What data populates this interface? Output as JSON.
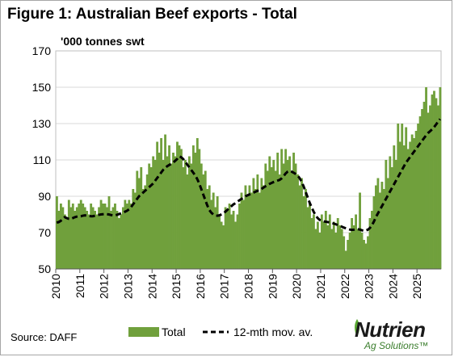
{
  "title": "Figure 1: Australian Beef exports - Total",
  "unit_label": "'000 tonnes swt",
  "source": "Source: DAFF",
  "logo": {
    "name": "Nutrien",
    "sub": "Ag Solutions™"
  },
  "colors": {
    "bars": "#70a03c",
    "line": "#000000",
    "grid": "#d9d9d9"
  },
  "chart_data": {
    "type": "bar",
    "ylim": [
      50,
      170
    ],
    "yticks": [
      50,
      70,
      90,
      110,
      130,
      150,
      170
    ],
    "x_tick_labels": [
      "2010",
      "2011",
      "2012",
      "2013",
      "2014",
      "2015",
      "2016",
      "2017",
      "2018",
      "2019",
      "2020",
      "2021",
      "2022",
      "2023",
      "2024",
      "2025"
    ],
    "grid": true,
    "legend_position": "bottom",
    "series": [
      {
        "name": "Total",
        "style": "bar",
        "values": [
          90,
          82,
          86,
          84,
          80,
          78,
          88,
          84,
          86,
          82,
          84,
          86,
          88,
          86,
          84,
          82,
          80,
          86,
          84,
          82,
          80,
          84,
          88,
          86,
          86,
          84,
          90,
          82,
          84,
          86,
          82,
          78,
          80,
          84,
          88,
          86,
          88,
          86,
          94,
          92,
          104,
          100,
          106,
          94,
          96,
          102,
          108,
          106,
          112,
          110,
          120,
          114,
          122,
          110,
          124,
          112,
          118,
          108,
          114,
          112,
          120,
          118,
          116,
          106,
          110,
          102,
          112,
          108,
          118,
          114,
          122,
          116,
          108,
          102,
          104,
          94,
          96,
          88,
          92,
          84,
          90,
          80,
          76,
          74,
          84,
          82,
          86,
          80,
          82,
          76,
          80,
          86,
          92,
          88,
          96,
          90,
          96,
          92,
          100,
          94,
          102,
          92,
          100,
          96,
          108,
          104,
          112,
          106,
          110,
          104,
          114,
          102,
          116,
          108,
          116,
          110,
          112,
          104,
          114,
          108,
          102,
          96,
          100,
          90,
          94,
          84,
          86,
          78,
          80,
          72,
          76,
          70,
          80,
          76,
          82,
          74,
          80,
          72,
          76,
          70,
          78,
          74,
          72,
          68,
          60,
          66,
          70,
          78,
          74,
          80,
          72,
          92,
          70,
          66,
          64,
          68,
          78,
          82,
          90,
          96,
          100,
          92,
          98,
          94,
          110,
          100,
          112,
          106,
          118,
          110,
          130,
          120,
          130,
          118,
          128,
          116,
          120,
          124,
          122,
          126,
          130,
          134,
          138,
          142,
          150,
          136,
          140,
          146,
          148,
          144,
          140,
          150
        ]
      },
      {
        "name": "12-mth mov. av.",
        "style": "dashed-line",
        "values": [
          75.5,
          75.8,
          76.5,
          77.5,
          78.5,
          78.0,
          77.6,
          77.5,
          78.0,
          78.5,
          78.8,
          79.0,
          79.0,
          79.3,
          79.5,
          79.4,
          79.2,
          79.0,
          79.0,
          79.3,
          79.6,
          79.8,
          80.0,
          80.1,
          80.2,
          80.1,
          80.0,
          79.7,
          79.5,
          79.5,
          79.8,
          80.2,
          80.6,
          81.0,
          81.5,
          82.0,
          82.8,
          84.0,
          85.5,
          87.0,
          88.5,
          90.0,
          91.0,
          92.0,
          93.0,
          94.0,
          95.0,
          96.0,
          97.0,
          98.5,
          100.0,
          101.5,
          103.0,
          104.5,
          105.5,
          106.5,
          107.2,
          107.8,
          108.5,
          109.5,
          110.5,
          112.0,
          111.5,
          110.5,
          109.0,
          107.5,
          106.0,
          104.5,
          103.0,
          101.5,
          99.5,
          97.0,
          94.0,
          91.0,
          88.0,
          85.0,
          82.5,
          81.0,
          80.0,
          79.5,
          79.3,
          79.5,
          80.0,
          80.6,
          81.5,
          82.5,
          83.5,
          84.5,
          85.5,
          86.2,
          87.0,
          87.8,
          88.5,
          89.2,
          90.0,
          90.5,
          91.0,
          91.5,
          92.0,
          92.5,
          93.0,
          93.5,
          94.0,
          94.8,
          95.5,
          96.2,
          96.8,
          97.3,
          97.8,
          98.2,
          98.6,
          99.0,
          99.8,
          101.0,
          102.5,
          103.5,
          104.0,
          103.6,
          103.0,
          102.3,
          101.5,
          100.0,
          98.0,
          95.5,
          92.5,
          89.5,
          86.5,
          84.0,
          81.5,
          79.5,
          78.0,
          77.0,
          76.5,
          76.2,
          76.0,
          75.8,
          75.6,
          75.4,
          75.0,
          74.6,
          74.2,
          73.8,
          73.3,
          72.8,
          72.4,
          72.0,
          71.7,
          71.5,
          71.6,
          71.8,
          71.9,
          71.7,
          71.3,
          71.0,
          71.2,
          71.6,
          72.5,
          74.0,
          76.0,
          78.5,
          80.5,
          82.5,
          84.5,
          86.5,
          88.5,
          90.5,
          92.5,
          94.5,
          96.5,
          98.5,
          100.5,
          102.5,
          104.5,
          106.5,
          108.5,
          110.0,
          111.5,
          113.0,
          114.5,
          116.0,
          117.5,
          119.0,
          120.5,
          122.0,
          123.5,
          124.8,
          125.8,
          126.8,
          128.0,
          129.5,
          131.0,
          132.5
        ]
      }
    ]
  }
}
